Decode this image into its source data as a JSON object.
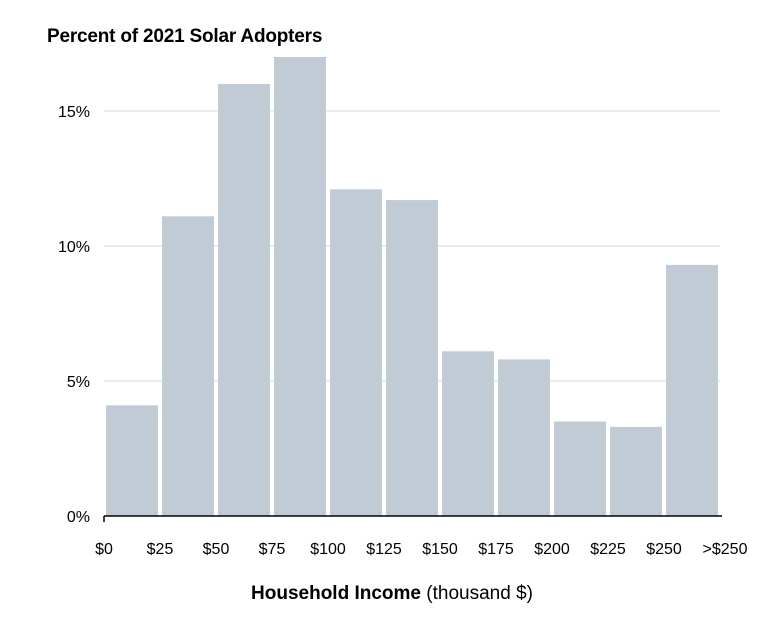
{
  "chart_data": {
    "type": "bar",
    "title": "Percent of 2021 Solar Adopters",
    "xlabel_bold": "Household Income",
    "xlabel_rest": "(thousand $)",
    "ylabel": "",
    "ylim": [
      0,
      17
    ],
    "yticks": [
      0,
      5,
      10,
      15
    ],
    "ytick_labels": [
      "0%",
      "5%",
      "10%",
      "15%"
    ],
    "xtick_labels": [
      "$0",
      "$25",
      "$50",
      "$75",
      "$100",
      "$125",
      "$150",
      "$175",
      "$200",
      "$225",
      "$250",
      ">$250"
    ],
    "bins": [
      "$0-$25",
      "$25-$50",
      "$50-$75",
      "$75-$100",
      "$100-$125",
      "$125-$150",
      "$150-$175",
      "$175-$200",
      "$200-$225",
      "$225-$250",
      ">$250"
    ],
    "values": [
      4.1,
      11.1,
      16.0,
      17.0,
      12.1,
      11.7,
      6.1,
      5.8,
      3.5,
      3.3,
      9.3
    ],
    "bar_color": "#c0cbd6",
    "grid": true,
    "grid_color": "#d3d8de",
    "axis_color": "#000000"
  }
}
